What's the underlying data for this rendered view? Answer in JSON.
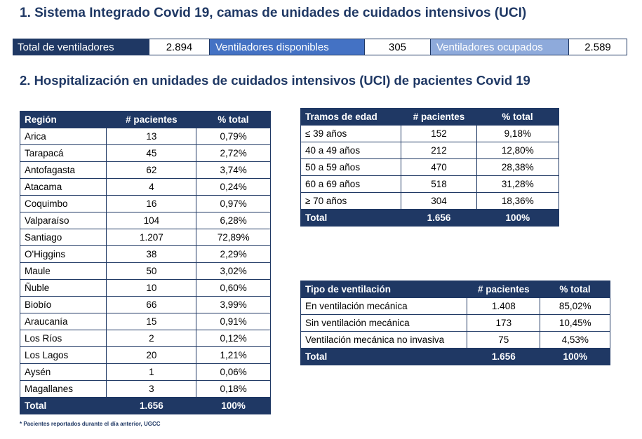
{
  "section1_title": "1. Sistema Integrado Covid 19, camas de unidades de cuidados intensivos (UCI)",
  "ventilators": {
    "total_label": "Total de ventiladores",
    "total_value": "2.894",
    "available_label": "Ventiladores disponibles",
    "available_value": "305",
    "occupied_label": "Ventiladores ocupados",
    "occupied_value": "2.589"
  },
  "section2_title": "2. Hospitalización en unidades de cuidados intensivos (UCI) de pacientes Covid 19",
  "region_table": {
    "headers": [
      "Región",
      "# pacientes",
      "% total"
    ],
    "rows": [
      [
        "Arica",
        "13",
        "0,79%"
      ],
      [
        "Tarapacá",
        "45",
        "2,72%"
      ],
      [
        "Antofagasta",
        "62",
        "3,74%"
      ],
      [
        "Atacama",
        "4",
        "0,24%"
      ],
      [
        "Coquimbo",
        "16",
        "0,97%"
      ],
      [
        "Valparaíso",
        "104",
        "6,28%"
      ],
      [
        "Santiago",
        "1.207",
        "72,89%"
      ],
      [
        "O'Higgins",
        "38",
        "2,29%"
      ],
      [
        "Maule",
        "50",
        "3,02%"
      ],
      [
        "Ñuble",
        "10",
        "0,60%"
      ],
      [
        "Biobío",
        "66",
        "3,99%"
      ],
      [
        "Araucanía",
        "15",
        "0,91%"
      ],
      [
        "Los Ríos",
        "2",
        "0,12%"
      ],
      [
        "Los Lagos",
        "20",
        "1,21%"
      ],
      [
        "Aysén",
        "1",
        "0,06%"
      ],
      [
        "Magallanes",
        "3",
        "0,18%"
      ]
    ],
    "total": [
      "Total",
      "1.656",
      "100%"
    ]
  },
  "age_table": {
    "headers": [
      "Tramos de edad",
      "# pacientes",
      "% total"
    ],
    "rows": [
      [
        "≤ 39 años",
        "152",
        "9,18%"
      ],
      [
        "40 a 49 años",
        "212",
        "12,80%"
      ],
      [
        "50 a 59 años",
        "470",
        "28,38%"
      ],
      [
        "60 a 69 años",
        "518",
        "31,28%"
      ],
      [
        "≥ 70 años",
        "304",
        "18,36%"
      ]
    ],
    "total": [
      "Total",
      "1.656",
      "100%"
    ]
  },
  "vent_table": {
    "headers": [
      "Tipo de ventilación",
      "# pacientes",
      "% total"
    ],
    "rows": [
      [
        "En ventilación mecánica",
        "1.408",
        "85,02%"
      ],
      [
        "Sin ventilación mecánica",
        "173",
        "10,45%"
      ],
      [
        "Ventilación mecánica no invasiva",
        "75",
        "4,53%"
      ]
    ],
    "total": [
      "Total",
      "1.656",
      "100%"
    ]
  },
  "footnote": "* Pacientes reportados durante el día anterior, UGCC"
}
